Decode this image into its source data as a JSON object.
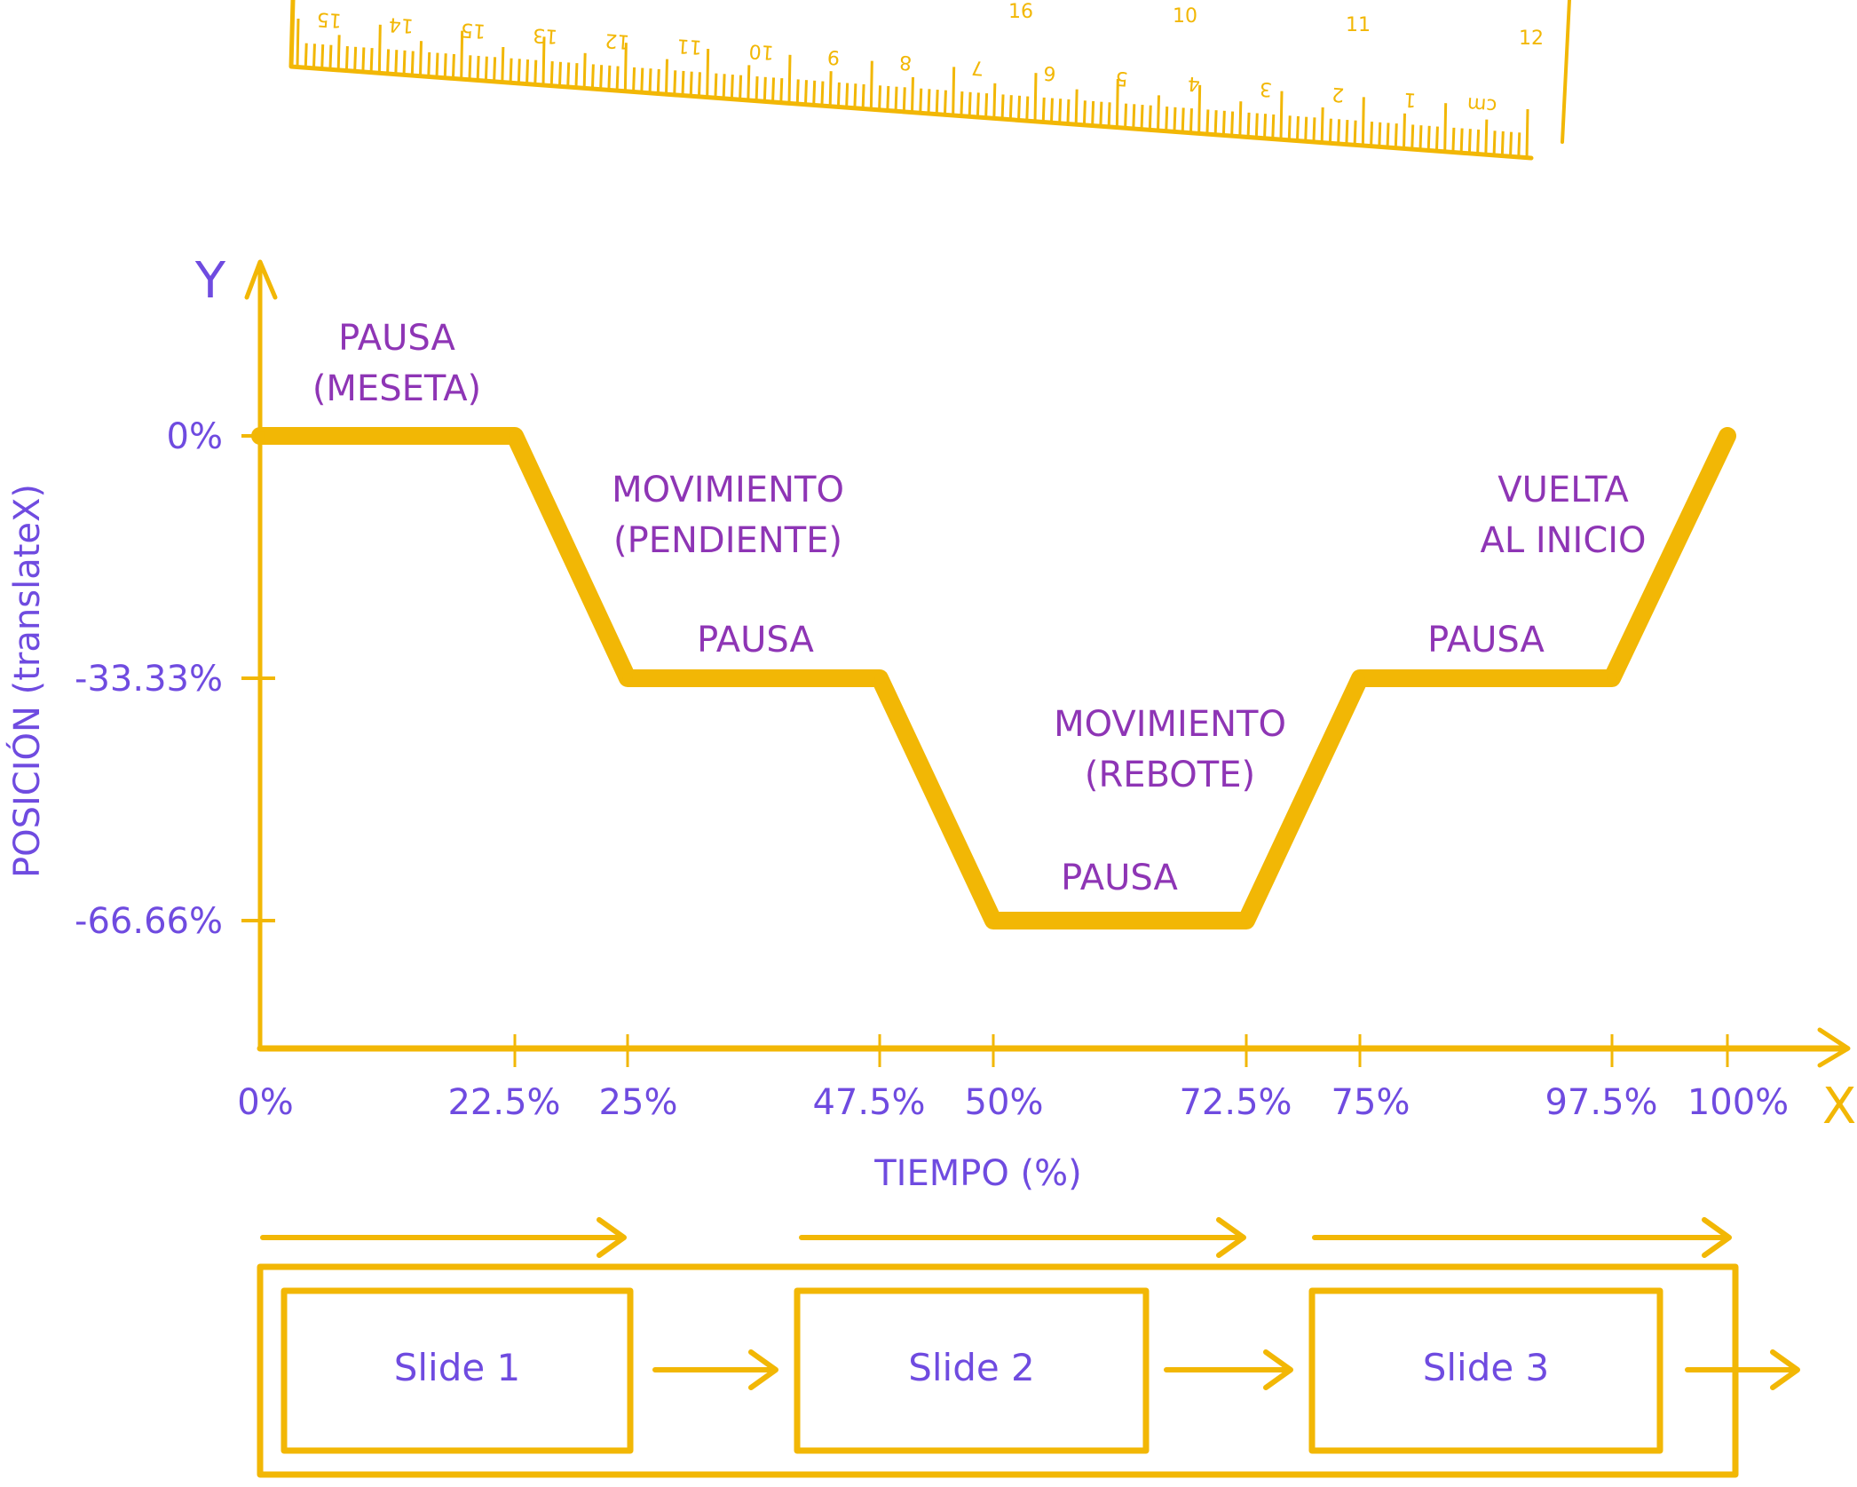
{
  "colors": {
    "line": "#F2B705",
    "annotation": "#8E35B5",
    "axis_text": "#6F4BE0"
  },
  "ruler": {
    "bottom_labels": [
      "15",
      "14",
      "15",
      "13",
      "12",
      "11",
      "10",
      "9",
      "8",
      "7",
      "6",
      "5",
      "4",
      "3",
      "2",
      "1",
      "cm"
    ],
    "top_labels": [
      "16",
      "10",
      "11",
      "12"
    ]
  },
  "chart_data": {
    "type": "line",
    "xlabel": "TIEMPO (%)",
    "ylabel": "POSICIÓN (translateX)",
    "x_axis_letter": "X",
    "y_axis_letter": "Y",
    "x_ticks": [
      "0%",
      "22.5%",
      "25%",
      "47.5%",
      "50%",
      "72.5%",
      "75%",
      "97.5%",
      "100%"
    ],
    "x_tick_values": [
      0,
      22.5,
      25,
      47.5,
      50,
      72.5,
      75,
      97.5,
      100
    ],
    "y_ticks": [
      "0%",
      "-33.33%",
      "-66.66%"
    ],
    "y_tick_values": [
      0,
      -33.33,
      -66.66
    ],
    "xlim": [
      0,
      100
    ],
    "ylim": [
      -66.66,
      0
    ],
    "grid": false,
    "points": [
      {
        "x": 0,
        "y": 0
      },
      {
        "x": 22.5,
        "y": 0
      },
      {
        "x": 25,
        "y": -33.33
      },
      {
        "x": 47.5,
        "y": -33.33
      },
      {
        "x": 50,
        "y": -66.66
      },
      {
        "x": 72.5,
        "y": -66.66
      },
      {
        "x": 75,
        "y": -33.33
      },
      {
        "x": 97.5,
        "y": -33.33
      },
      {
        "x": 100,
        "y": 0
      }
    ],
    "annotations": [
      {
        "lines": [
          "PAUSA",
          "(MESETA)"
        ]
      },
      {
        "lines": [
          "MOVIMIENTO",
          "(PENDIENTE)"
        ]
      },
      {
        "lines": [
          "PAUSA"
        ]
      },
      {
        "lines": [
          "MOVIMIENTO",
          "(REBOTE)"
        ]
      },
      {
        "lines": [
          "PAUSA"
        ]
      },
      {
        "lines": [
          "VUELTA",
          "AL INICIO"
        ]
      },
      {
        "lines": [
          "PAUSA"
        ]
      }
    ]
  },
  "slides": [
    {
      "label": "Slide 1"
    },
    {
      "label": "Slide 2"
    },
    {
      "label": "Slide 3"
    }
  ]
}
